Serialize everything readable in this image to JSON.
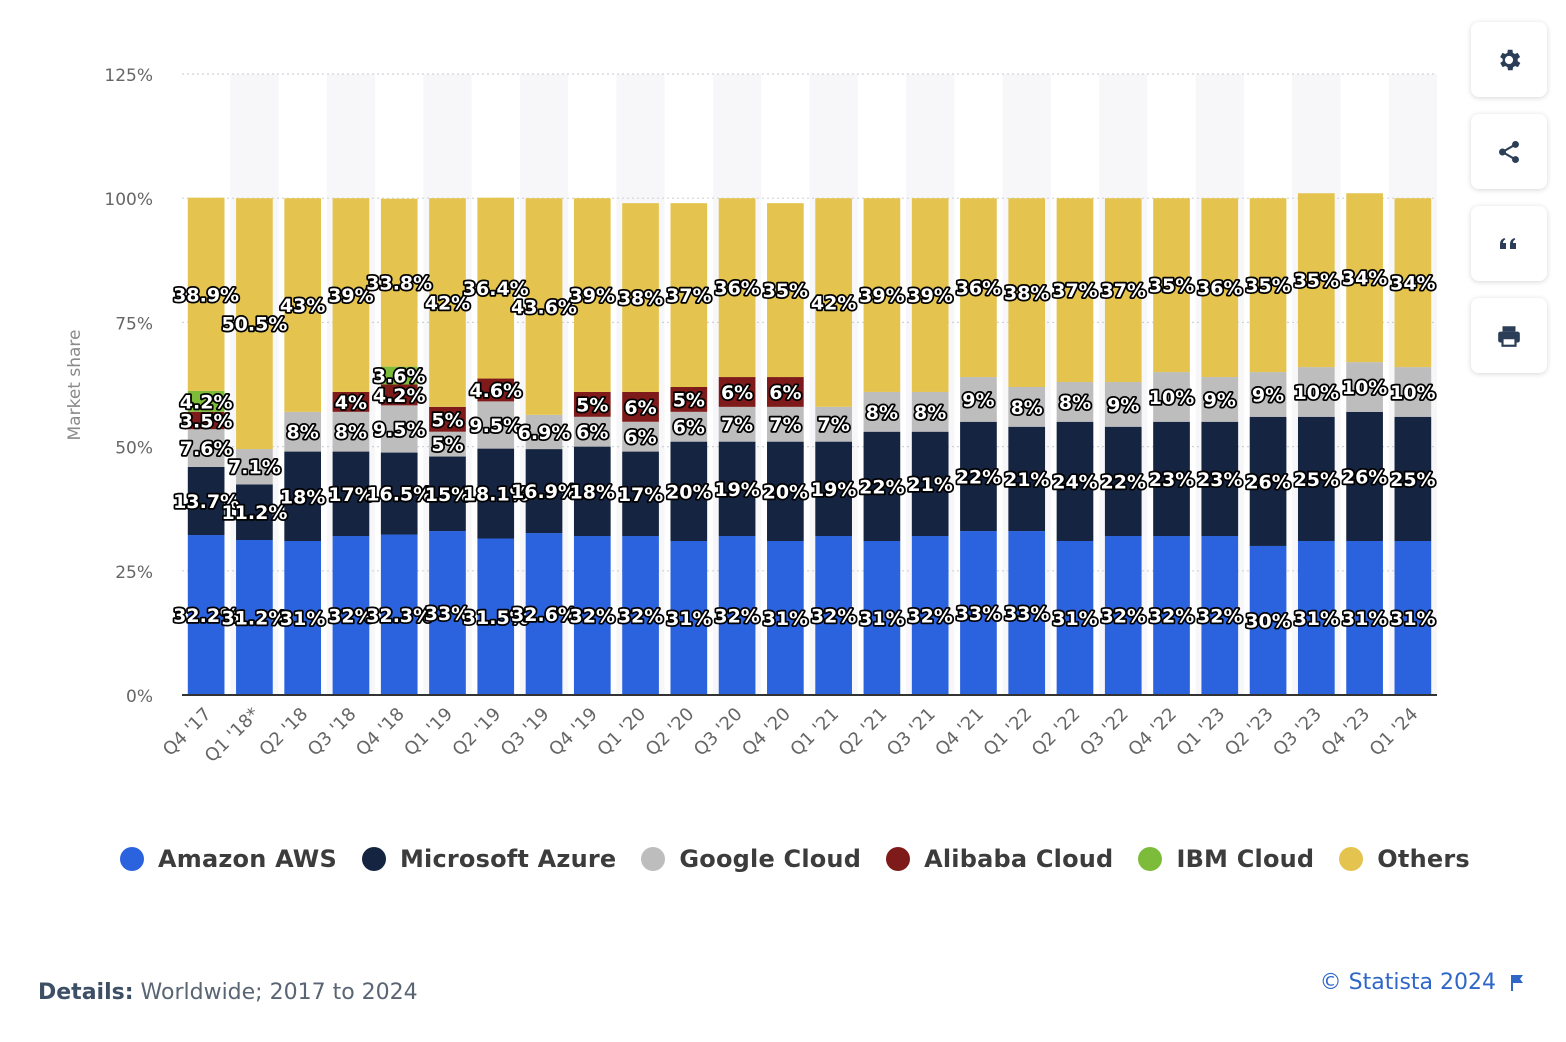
{
  "chart_data": {
    "type": "bar",
    "stacked": true,
    "ylabel": "Market share",
    "ylim": [
      0,
      125
    ],
    "yticks": [
      "0%",
      "25%",
      "50%",
      "75%",
      "100%",
      "125%"
    ],
    "grid": true,
    "legend_position": "bottom",
    "categories": [
      "Q4 '17",
      "Q1 '18*",
      "Q2 '18",
      "Q3 '18",
      "Q4 '18",
      "Q1 '19",
      "Q2 '19",
      "Q3 '19",
      "Q4 '19",
      "Q1 '20",
      "Q2 '20",
      "Q3 '20",
      "Q4 '20",
      "Q1 '21",
      "Q2 '21",
      "Q3 '21",
      "Q4 '21",
      "Q1 '22",
      "Q2 '22",
      "Q3 '22",
      "Q4 '22",
      "Q1 '23",
      "Q2 '23",
      "Q3 '23",
      "Q4 '23",
      "Q1 '24"
    ],
    "series": [
      {
        "name": "Amazon AWS",
        "color": "#2b63de",
        "values": [
          32.2,
          31.2,
          31,
          32,
          32.3,
          33,
          31.5,
          32.6,
          32,
          32,
          31,
          32,
          31,
          32,
          31,
          32,
          33,
          33,
          31,
          32,
          32,
          32,
          30,
          31,
          31,
          31
        ],
        "labels": [
          "32.2%",
          "31.2%",
          "31%",
          "32%",
          "32.3%",
          "33%",
          "31.5%",
          "32.6%",
          "32%",
          "32%",
          "31%",
          "32%",
          "31%",
          "32%",
          "31%",
          "32%",
          "33%",
          "33%",
          "31%",
          "32%",
          "32%",
          "32%",
          "30%",
          "31%",
          "31%",
          "31%"
        ]
      },
      {
        "name": "Microsoft Azure",
        "color": "#152440",
        "values": [
          13.7,
          11.2,
          18,
          17,
          16.5,
          15,
          18.1,
          16.9,
          18,
          17,
          20,
          19,
          20,
          19,
          22,
          21,
          22,
          21,
          24,
          22,
          23,
          23,
          26,
          25,
          26,
          25
        ],
        "labels": [
          "13.7%",
          "11.2%",
          "18%",
          "17%",
          "16.5%",
          "15%",
          "18.1%",
          "16.9%",
          "18%",
          "17%",
          "20%",
          "19%",
          "20%",
          "19%",
          "22%",
          "21%",
          "22%",
          "21%",
          "24%",
          "22%",
          "23%",
          "23%",
          "26%",
          "25%",
          "26%",
          "25%"
        ]
      },
      {
        "name": "Google Cloud",
        "color": "#bdbdbd",
        "values": [
          7.6,
          7.1,
          8,
          8,
          9.5,
          5,
          9.5,
          6.9,
          6,
          6,
          6,
          7,
          7,
          7,
          8,
          8,
          9,
          8,
          8,
          9,
          10,
          9,
          9,
          10,
          10,
          10
        ],
        "labels": [
          "7.6%",
          "7.1%",
          "8%",
          "8%",
          "9.5%",
          "5%",
          "9.5%",
          "6.9%",
          "6%",
          "6%",
          "6%",
          "7%",
          "7%",
          "7%",
          "8%",
          "8%",
          "9%",
          "8%",
          "8%",
          "9%",
          "10%",
          "9%",
          "9%",
          "10%",
          "10%",
          "10%"
        ]
      },
      {
        "name": "Alibaba Cloud",
        "color": "#7f1a1a",
        "values": [
          3.5,
          0,
          0,
          4,
          4.2,
          5,
          4.6,
          0,
          5,
          6,
          5,
          6,
          6,
          0,
          0,
          0,
          0,
          0,
          0,
          0,
          0,
          0,
          0,
          0,
          0,
          0
        ],
        "labels": [
          "3.5%",
          "",
          "",
          "4%",
          "4.2%",
          "5%",
          "4.6%",
          "",
          "5%",
          "6%",
          "5%",
          "6%",
          "6%",
          "",
          "",
          "",
          "",
          "",
          "",
          "",
          "",
          "",
          "",
          "",
          "",
          ""
        ]
      },
      {
        "name": "IBM Cloud",
        "color": "#7dbb3a",
        "values": [
          4.2,
          0,
          0,
          0,
          3.6,
          0,
          0,
          0,
          0,
          0,
          0,
          0,
          0,
          0,
          0,
          0,
          0,
          0,
          0,
          0,
          0,
          0,
          0,
          0,
          0,
          0
        ],
        "labels": [
          "4.2%",
          "",
          "",
          "",
          "3.6%",
          "",
          "",
          "",
          "",
          "",
          "",
          "",
          "",
          "",
          "",
          "",
          "",
          "",
          "",
          "",
          "",
          "",
          "",
          "",
          "",
          ""
        ]
      },
      {
        "name": "Others",
        "color": "#e4c44f",
        "values": [
          38.9,
          50.5,
          43,
          39,
          33.8,
          42,
          36.4,
          43.6,
          39,
          38,
          37,
          36,
          35,
          42,
          39,
          39,
          36,
          38,
          37,
          37,
          35,
          36,
          35,
          35,
          34,
          34
        ],
        "labels": [
          "38.9%",
          "50.5%",
          "43%",
          "39%",
          "33.8%",
          "42%",
          "36.4%",
          "43.6%",
          "39%",
          "38%",
          "37%",
          "36%",
          "35%",
          "42%",
          "39%",
          "39%",
          "36%",
          "38%",
          "37%",
          "37%",
          "35%",
          "36%",
          "35%",
          "35%",
          "34%",
          "34%"
        ]
      }
    ]
  },
  "toolbar": {
    "buttons": [
      {
        "icon": "gear-icon"
      },
      {
        "icon": "share-icon"
      },
      {
        "icon": "quote-icon"
      },
      {
        "icon": "print-icon"
      }
    ]
  },
  "footer": {
    "details_label": "Details:",
    "details_text": "Worldwide; 2017 to 2024",
    "credit": "© Statista 2024"
  }
}
